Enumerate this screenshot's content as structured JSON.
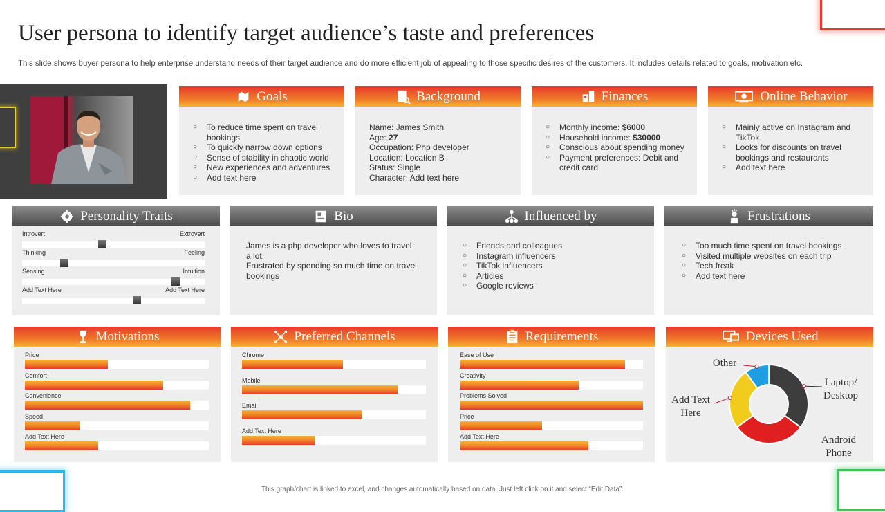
{
  "title": "User persona to identify target audience’s taste and preferences",
  "subtitle": "This slide shows buyer persona to help enterprise understand needs of their target audience and do more efficient job of appealing to those specific desires of the customers. It includes details related to goals, motivation etc.",
  "footer": "This graph/chart is linked to excel, and changes automatically based on data. Just left click on it and select “Edit Data”.",
  "colors": {
    "accent_red": "#e8392b",
    "accent_orange": "#f0822a",
    "accent_yellow": "#f7b234",
    "dark_gray": "#444444",
    "panel": "#eeeeee"
  },
  "goals": {
    "title": "Goals",
    "items": [
      "To reduce time spent on travel bookings",
      "To quickly narrow down options",
      "Sense of stability in chaotic world",
      "New experiences and adventures",
      "Add text here"
    ]
  },
  "background": {
    "title": "Background",
    "lines": [
      "Name: James Smith",
      "Occupation: Php developer",
      "Location: Location B",
      "Status: Single",
      "Character: Add text here"
    ],
    "age_label": "Age: ",
    "age_value": "27"
  },
  "finances": {
    "title": "Finances",
    "monthly_label": "Monthly income: ",
    "monthly_value": "$6000",
    "household_label": "Household income: ",
    "household_value": "$30000",
    "items": [
      "Conscious about spending money",
      "Payment preferences: Debit and credit card"
    ]
  },
  "online": {
    "title": "Online Behavior",
    "items": [
      "Mainly active on Instagram and TikTok",
      "Looks for discounts on travel bookings and restaurants",
      "Add text here"
    ]
  },
  "personality": {
    "title": "Personality Traits",
    "traits": [
      {
        "left": "Introvert",
        "right": "Extrovert",
        "value": 0.44
      },
      {
        "left": "Thinking",
        "right": "Feeling",
        "value": 0.23
      },
      {
        "left": "Sensing",
        "right": "Intuition",
        "value": 0.84
      },
      {
        "left": "Add Text Here",
        "right": "Add Text Here",
        "value": 0.63
      }
    ]
  },
  "bio": {
    "title": "Bio",
    "text": "James is a php developer who loves to travel a lot.\nFrustrated by spending so much time on travel bookings"
  },
  "influenced": {
    "title": "Influenced by",
    "items": [
      "Friends and colleagues",
      "Instagram influencers",
      "TikTok influencers",
      "Articles",
      "Google reviews"
    ]
  },
  "frustrations": {
    "title": "Frustrations",
    "items": [
      "Too much time spent on travel bookings",
      "Visited multiple websites on each trip",
      "Tech freak",
      "Add text here"
    ]
  },
  "motivations": {
    "title": "Motivations",
    "bars": [
      {
        "label": "Price",
        "value": 45
      },
      {
        "label": "Comfort",
        "value": 75
      },
      {
        "label": "Convenience",
        "value": 90
      },
      {
        "label": "Speed",
        "value": 30
      },
      {
        "label": "Add Text Here",
        "value": 40
      }
    ]
  },
  "channels": {
    "title": "Preferred Channels",
    "bars": [
      {
        "label": "Chrome",
        "value": 55
      },
      {
        "label": "Mobile",
        "value": 85
      },
      {
        "label": "Email",
        "value": 65
      },
      {
        "label": "Add Text Here",
        "value": 40
      }
    ]
  },
  "requirements": {
    "title": "Requirements",
    "bars": [
      {
        "label": "Ease of Use",
        "value": 90
      },
      {
        "label": "Creativity",
        "value": 65
      },
      {
        "label": "Problems Solved",
        "value": 100
      },
      {
        "label": "Price",
        "value": 45
      },
      {
        "label": "Add Text Here",
        "value": 70
      }
    ]
  },
  "devices": {
    "title": "Devices Used",
    "segments": [
      {
        "name": "Laptop/ Desktop",
        "value": 35,
        "color": "#3d3d3d"
      },
      {
        "name": "Android Phone",
        "value": 30,
        "color": "#e02020"
      },
      {
        "name": "Add Text Here",
        "value": 25,
        "color": "#f2cc1c"
      },
      {
        "name": "Other",
        "value": 10,
        "color": "#1e9ee0"
      }
    ],
    "labels": {
      "laptop": "Laptop/\nDesktop",
      "android": "Android\nPhone",
      "addtext": "Add Text\nHere",
      "other": "Other"
    }
  }
}
